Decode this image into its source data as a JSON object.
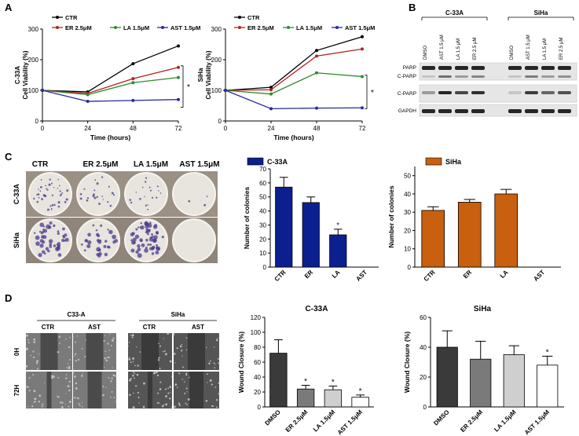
{
  "panels": {
    "A": "A",
    "B": "B",
    "C": "C",
    "D": "D"
  },
  "viability_legend": [
    "CTR",
    "ER 2.5μM",
    "LA 1.5μM",
    "AST 1.5μM"
  ],
  "viability_colors": [
    "#000000",
    "#b22222",
    "#2e8b2e",
    "#2a2aa0"
  ],
  "significance_mark": "*",
  "western_blot": {
    "cell_lines": [
      "C-33A",
      "SiHa"
    ],
    "lanes": [
      "DMSO",
      "AST 1.5 μM",
      "LA 1.5 μM",
      "ER 2.5 μM"
    ],
    "bands": [
      "PARP",
      "C-PARP",
      "C-PARP",
      "GAPDH"
    ]
  },
  "colony_plates": {
    "columns": [
      "CTR",
      "ER 2.5μM",
      "LA 1.5μM",
      "AST 1.5μM"
    ],
    "rows": [
      "C-33A",
      "SiHa"
    ]
  },
  "wound_images": {
    "groups": [
      "C33-A",
      "SiHa"
    ],
    "columns": [
      "CTR",
      "AST",
      "CTR",
      "AST"
    ],
    "rows": [
      "0H",
      "72H"
    ]
  },
  "chart_data": [
    {
      "id": "viability-c33a",
      "type": "line",
      "ylabel_lines": [
        "C-33A",
        "Cell Viability (%)"
      ],
      "xlabel": "Time (hours)",
      "x": [
        0,
        24,
        48,
        72
      ],
      "xticks": [
        "0",
        "24",
        "48",
        "72"
      ],
      "yticks": [
        "0",
        "100",
        "200",
        "300"
      ],
      "ylim": [
        0,
        300
      ],
      "series": [
        {
          "name": "CTR",
          "values": [
            100,
            95,
            187,
            245
          ]
        },
        {
          "name": "ER 2.5μM",
          "values": [
            100,
            90,
            138,
            175
          ]
        },
        {
          "name": "LA 1.5μM",
          "values": [
            100,
            86,
            125,
            142
          ]
        },
        {
          "name": "AST 1.5μM",
          "values": [
            100,
            64,
            67,
            70
          ]
        }
      ],
      "significance": "*"
    },
    {
      "id": "viability-siha",
      "type": "line",
      "ylabel_lines": [
        "SiHa",
        "Cell Viability (%)"
      ],
      "xlabel": "Time (hours)",
      "x": [
        0,
        24,
        48,
        72
      ],
      "xticks": [
        "0",
        "24",
        "48",
        "72"
      ],
      "yticks": [
        "0",
        "100",
        "200",
        "300"
      ],
      "ylim": [
        0,
        300
      ],
      "series": [
        {
          "name": "CTR",
          "values": [
            100,
            110,
            230,
            275
          ]
        },
        {
          "name": "ER 2.5μM",
          "values": [
            100,
            102,
            212,
            235
          ]
        },
        {
          "name": "LA 1.5μM",
          "values": [
            100,
            88,
            157,
            145
          ]
        },
        {
          "name": "AST 1.5μM",
          "values": [
            100,
            40,
            42,
            43
          ]
        }
      ],
      "significance": "*"
    },
    {
      "id": "colonies-c33a",
      "type": "bar",
      "legend": "C-33A",
      "ylabel": "Number of colonies",
      "categories": [
        "CTR",
        "ER",
        "LA",
        "AST"
      ],
      "values": [
        57,
        46,
        23,
        0
      ],
      "errors": [
        7,
        4,
        4,
        0
      ],
      "yticks": [
        "0",
        "10",
        "20",
        "30",
        "40",
        "50",
        "60",
        "70"
      ],
      "ylim": [
        0,
        70
      ],
      "color": "#0b1f8f",
      "significance_on": "LA",
      "significance": "*"
    },
    {
      "id": "colonies-siha",
      "type": "bar",
      "legend": "SiHa",
      "ylabel": "Number of colonies",
      "categories": [
        "CTR",
        "ER",
        "LA",
        "AST"
      ],
      "values": [
        31,
        35.5,
        40,
        0
      ],
      "errors": [
        2,
        1.5,
        2.5,
        0
      ],
      "yticks": [
        "0",
        "10",
        "20",
        "30",
        "40",
        "50"
      ],
      "ylim": [
        0,
        55
      ],
      "color": "#c8600f"
    },
    {
      "id": "wound-c33a",
      "type": "bar",
      "title": "C-33A",
      "ylabel": "Wound Closure (%)",
      "categories": [
        "DMSO",
        "ER 2.5μM",
        "LA 1.5μM",
        "AST 1.5μM"
      ],
      "values": [
        72,
        24,
        23,
        13
      ],
      "errors": [
        18,
        5,
        5,
        3
      ],
      "yticks": [
        "0",
        "20",
        "40",
        "60",
        "80",
        "100",
        "120"
      ],
      "ylim": [
        0,
        120
      ],
      "colors": [
        "#3a3a3a",
        "#7a7a7a",
        "#cfcfcf",
        "#ffffff"
      ],
      "significance": [
        "",
        "*",
        "*",
        "*"
      ]
    },
    {
      "id": "wound-siha",
      "type": "bar",
      "title": "SiHa",
      "ylabel": "Wound Closure (%)",
      "categories": [
        "DMSO",
        "ER 2.5μM",
        "LA 1.5μM",
        "AST 1.5μM"
      ],
      "values": [
        40,
        32,
        35,
        28
      ],
      "errors": [
        11,
        12,
        6,
        6
      ],
      "yticks": [
        "0",
        "20",
        "40",
        "60"
      ],
      "ylim": [
        0,
        60
      ],
      "colors": [
        "#3a3a3a",
        "#7a7a7a",
        "#cfcfcf",
        "#ffffff"
      ],
      "significance": [
        "",
        "",
        "",
        "*"
      ]
    }
  ]
}
